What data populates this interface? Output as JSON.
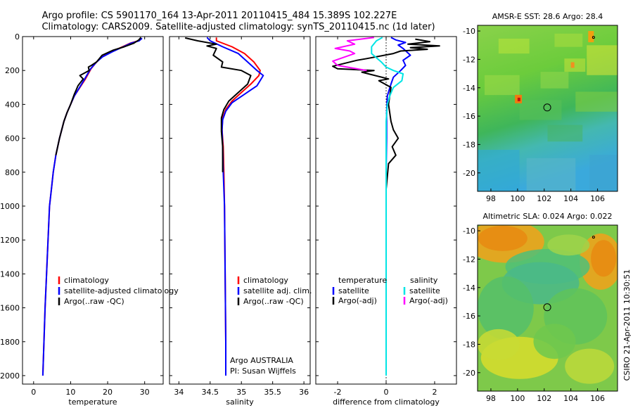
{
  "header": {
    "line1": "Argo profile: CS 5901170_164 13-Apr-2011 20110415_484 15.389S 102.227E",
    "line2": "Climatology: CARS2009. Satellite-adjusted climatology: synTS_20110415.nc (1d later)"
  },
  "side_credit": "CSIRO 21-Apr-2011 10:30:51",
  "colors": {
    "red": "#ff0000",
    "blue": "#0000ff",
    "black": "#000000",
    "cyan": "#00e5e5",
    "magenta": "#ff00ff"
  },
  "chart_data": [
    {
      "type": "line",
      "xlabel": "temperature",
      "ylabel": "",
      "xlim": [
        -3,
        35
      ],
      "ylim": [
        2050,
        0
      ],
      "xticks": [
        "0",
        "10",
        "20",
        "30"
      ],
      "yticks": [
        "0",
        "200",
        "400",
        "600",
        "800",
        "1000",
        "1200",
        "1400",
        "1600",
        "1800",
        "2000"
      ],
      "legend": {
        "position": "lower-right",
        "entries": [
          "climatology",
          "satellite-adjusted climatology",
          "Argo(..raw -QC)"
        ]
      },
      "series": [
        {
          "name": "climatology",
          "color": "red",
          "points": [
            [
              29.2,
              10
            ],
            [
              28.3,
              25
            ],
            [
              26.0,
              40
            ],
            [
              24.0,
              60
            ],
            [
              21.0,
              90
            ],
            [
              18.5,
              120
            ],
            [
              17.0,
              150
            ],
            [
              15.5,
              190
            ],
            [
              14.0,
              250
            ],
            [
              12.5,
              300
            ],
            [
              11.0,
              350
            ],
            [
              10.0,
              400
            ],
            [
              9.0,
              450
            ],
            [
              8.2,
              500
            ],
            [
              7.0,
              600
            ],
            [
              6.0,
              700
            ],
            [
              5.3,
              800
            ],
            [
              4.8,
              900
            ],
            [
              4.3,
              1000
            ],
            [
              3.9,
              1200
            ],
            [
              3.5,
              1400
            ],
            [
              3.1,
              1600
            ],
            [
              2.8,
              1800
            ],
            [
              2.5,
              2000
            ]
          ]
        },
        {
          "name": "satellite-adjusted climatology",
          "color": "blue",
          "points": [
            [
              29.3,
              10
            ],
            [
              28.5,
              25
            ],
            [
              26.2,
              40
            ],
            [
              24.2,
              60
            ],
            [
              21.2,
              90
            ],
            [
              18.6,
              120
            ],
            [
              17.0,
              150
            ],
            [
              15.4,
              190
            ],
            [
              13.8,
              250
            ],
            [
              12.4,
              300
            ],
            [
              11.0,
              350
            ],
            [
              10.0,
              400
            ],
            [
              9.0,
              450
            ],
            [
              8.2,
              500
            ],
            [
              7.0,
              600
            ],
            [
              6.0,
              700
            ],
            [
              5.3,
              800
            ],
            [
              4.8,
              900
            ],
            [
              4.3,
              1000
            ],
            [
              3.9,
              1200
            ],
            [
              3.5,
              1400
            ],
            [
              3.1,
              1600
            ],
            [
              2.8,
              1800
            ],
            [
              2.5,
              2000
            ]
          ]
        },
        {
          "name": "Argo(..raw -QC)",
          "color": "black",
          "points": [
            [
              29.0,
              5
            ],
            [
              28.4,
              20
            ],
            [
              27.0,
              40
            ],
            [
              24.5,
              60
            ],
            [
              21.5,
              80
            ],
            [
              18.5,
              110
            ],
            [
              17.0,
              150
            ],
            [
              15.6,
              170
            ],
            [
              14.8,
              180
            ],
            [
              15.0,
              200
            ],
            [
              12.5,
              230
            ],
            [
              13.4,
              250
            ],
            [
              12.0,
              290
            ],
            [
              11.0,
              340
            ],
            [
              10.0,
              400
            ],
            [
              9.0,
              450
            ],
            [
              8.2,
              500
            ],
            [
              7.0,
              600
            ],
            [
              6.0,
              700
            ]
          ]
        }
      ]
    },
    {
      "type": "line",
      "xlabel": "salinity",
      "ylabel": "",
      "xlim": [
        33.85,
        36.1
      ],
      "ylim": [
        2050,
        0
      ],
      "xticks": [
        "34",
        "34.5",
        "35",
        "35.5",
        "36"
      ],
      "legend": {
        "position": "lower-right",
        "entries": [
          "climatology",
          "satellite adj. clim.",
          "Argo(..raw -QC)"
        ]
      },
      "annotations": [
        "Argo AUSTRALIA",
        "PI: Susan Wijffels"
      ],
      "series": [
        {
          "name": "climatology",
          "color": "red",
          "points": [
            [
              34.6,
              5
            ],
            [
              34.6,
              25
            ],
            [
              34.85,
              60
            ],
            [
              35.05,
              100
            ],
            [
              35.2,
              150
            ],
            [
              35.3,
              200
            ],
            [
              35.28,
              230
            ],
            [
              35.15,
              280
            ],
            [
              35.0,
              330
            ],
            [
              34.85,
              380
            ],
            [
              34.75,
              430
            ],
            [
              34.7,
              480
            ],
            [
              34.69,
              550
            ],
            [
              34.71,
              650
            ],
            [
              34.72,
              800
            ],
            [
              34.73,
              1000
            ],
            [
              34.74,
              1400
            ],
            [
              34.75,
              1800
            ],
            [
              34.75,
              2000
            ]
          ]
        },
        {
          "name": "satellite adj. clim.",
          "color": "blue",
          "points": [
            [
              34.45,
              5
            ],
            [
              34.5,
              25
            ],
            [
              34.7,
              60
            ],
            [
              34.95,
              100
            ],
            [
              35.1,
              150
            ],
            [
              35.25,
              200
            ],
            [
              35.35,
              230
            ],
            [
              35.25,
              290
            ],
            [
              35.05,
              340
            ],
            [
              34.85,
              390
            ],
            [
              34.75,
              440
            ],
            [
              34.7,
              490
            ],
            [
              34.69,
              550
            ],
            [
              34.7,
              650
            ],
            [
              34.71,
              800
            ],
            [
              34.73,
              1000
            ],
            [
              34.74,
              1400
            ],
            [
              34.75,
              1800
            ],
            [
              34.75,
              2000
            ]
          ]
        },
        {
          "name": "Argo(..raw -QC)",
          "color": "black",
          "points": [
            [
              34.1,
              8
            ],
            [
              34.3,
              25
            ],
            [
              34.6,
              45
            ],
            [
              34.45,
              55
            ],
            [
              34.6,
              70
            ],
            [
              34.55,
              110
            ],
            [
              34.7,
              150
            ],
            [
              34.68,
              180
            ],
            [
              35.0,
              200
            ],
            [
              35.15,
              230
            ],
            [
              35.1,
              280
            ],
            [
              34.95,
              330
            ],
            [
              34.8,
              380
            ],
            [
              34.72,
              430
            ],
            [
              34.68,
              480
            ],
            [
              34.68,
              560
            ],
            [
              34.7,
              650
            ],
            [
              34.7,
              800
            ]
          ]
        }
      ]
    },
    {
      "type": "line",
      "xlabel": "difference from climatology",
      "ylabel": "",
      "xlim": [
        -2.9,
        2.9
      ],
      "ylim": [
        2050,
        0
      ],
      "xticks": [
        "-2",
        "0",
        "2"
      ],
      "legend": {
        "position": "lower-center",
        "headers": [
          "temperature",
          "salinity"
        ],
        "entries": [
          "satellite",
          "Argo(-adj)",
          "satellite",
          "Argo(-adj)"
        ]
      },
      "series": [
        {
          "name": "temperature satellite",
          "color": "blue",
          "points": [
            [
              0.2,
              5
            ],
            [
              0.4,
              20
            ],
            [
              0.8,
              35
            ],
            [
              0.5,
              50
            ],
            [
              0.7,
              70
            ],
            [
              1.0,
              110
            ],
            [
              0.7,
              140
            ],
            [
              0.8,
              170
            ],
            [
              0.6,
              200
            ],
            [
              0.3,
              240
            ],
            [
              0.2,
              280
            ],
            [
              0.05,
              350
            ],
            [
              0.02,
              450
            ],
            [
              0.02,
              600
            ],
            [
              0.0,
              800
            ],
            [
              0.0,
              1000
            ],
            [
              0.0,
              1400
            ],
            [
              0.0,
              2000
            ]
          ]
        },
        {
          "name": "temperature Argo(-adj)",
          "color": "black",
          "points": [
            [
              1.2,
              15
            ],
            [
              1.8,
              30
            ],
            [
              0.9,
              45
            ],
            [
              2.2,
              55
            ],
            [
              1.0,
              65
            ],
            [
              1.7,
              75
            ],
            [
              0.6,
              85
            ],
            [
              0.3,
              100
            ],
            [
              -0.8,
              130
            ],
            [
              -1.2,
              140
            ],
            [
              -2.2,
              175
            ],
            [
              -2.0,
              190
            ],
            [
              -0.5,
              200
            ],
            [
              -1.0,
              210
            ],
            [
              0.1,
              250
            ],
            [
              -0.3,
              260
            ],
            [
              0.2,
              300
            ],
            [
              0.1,
              400
            ],
            [
              0.2,
              500
            ],
            [
              0.3,
              550
            ],
            [
              0.5,
              600
            ],
            [
              0.25,
              650
            ],
            [
              0.4,
              700
            ],
            [
              0.1,
              750
            ],
            [
              0.0,
              900
            ]
          ]
        },
        {
          "name": "salinity satellite",
          "color": "cyan",
          "points": [
            [
              -0.15,
              5
            ],
            [
              -0.4,
              25
            ],
            [
              -0.6,
              60
            ],
            [
              -0.6,
              100
            ],
            [
              -0.2,
              150
            ],
            [
              0.0,
              180
            ],
            [
              0.3,
              200
            ],
            [
              0.7,
              220
            ],
            [
              0.65,
              260
            ],
            [
              0.3,
              300
            ],
            [
              0.15,
              350
            ],
            [
              0.05,
              400
            ],
            [
              0.0,
              500
            ],
            [
              0.0,
              600
            ],
            [
              0.0,
              800
            ],
            [
              0.0,
              1000
            ],
            [
              0.0,
              1400
            ],
            [
              0.0,
              2000
            ]
          ]
        },
        {
          "name": "salinity Argo(-adj)",
          "color": "magenta",
          "points": [
            [
              -0.5,
              5
            ],
            [
              -1.6,
              25
            ],
            [
              -1.3,
              45
            ],
            [
              -2.1,
              70
            ],
            [
              -1.5,
              85
            ],
            [
              -1.3,
              100
            ],
            [
              -1.9,
              130
            ],
            [
              -2.2,
              145
            ],
            [
              -2.0,
              170
            ],
            [
              -1.4,
              185
            ],
            [
              -0.8,
              200
            ]
          ]
        }
      ]
    },
    {
      "type": "heatmap",
      "title": "AMSR-E SST: 28.6 Argo: 28.4",
      "xlim": [
        97,
        107.5
      ],
      "ylim": [
        -21.3,
        -9.6
      ],
      "xticks": [
        "98",
        "100",
        "102",
        "104",
        "106"
      ],
      "yticks": [
        "-10",
        "-12",
        "-14",
        "-16",
        "-18",
        "-20"
      ],
      "marker": {
        "lon": 102.227,
        "lat": -15.389
      }
    },
    {
      "type": "heatmap",
      "title": "Altimetric SLA: 0.024 Argo: 0.022",
      "xlim": [
        97,
        107.5
      ],
      "ylim": [
        -21.3,
        -9.6
      ],
      "xticks": [
        "98",
        "100",
        "102",
        "104",
        "106"
      ],
      "yticks": [
        "-10",
        "-12",
        "-14",
        "-16",
        "-18",
        "-20"
      ],
      "marker": {
        "lon": 102.227,
        "lat": -15.389
      }
    }
  ]
}
